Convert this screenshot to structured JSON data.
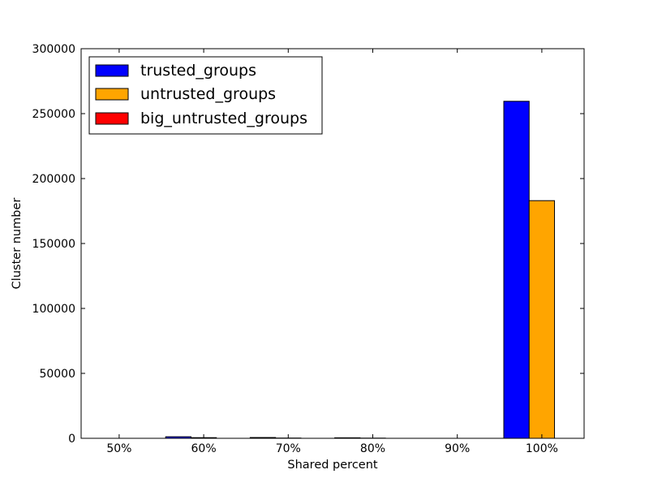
{
  "chart_data": {
    "type": "bar",
    "categories": [
      "50%",
      "60%",
      "70%",
      "80%",
      "90%",
      "100%"
    ],
    "series": [
      {
        "name": "trusted_groups",
        "color": "#0000ff",
        "values": [
          0,
          1200,
          600,
          400,
          0,
          259500
        ]
      },
      {
        "name": "untrusted_groups",
        "color": "#ffa500",
        "values": [
          0,
          500,
          200,
          150,
          0,
          183000
        ]
      },
      {
        "name": "big_untrusted_groups",
        "color": "#ff0000",
        "values": [
          0,
          0,
          0,
          0,
          0,
          0
        ]
      }
    ],
    "xlabel": "Shared percent",
    "ylabel": "Cluster number",
    "ylim": [
      0,
      300000
    ],
    "yticks": [
      "0",
      "50000",
      "100000",
      "150000",
      "200000",
      "250000",
      "300000"
    ],
    "legend": {
      "placement": "top-left"
    },
    "grid": false
  }
}
